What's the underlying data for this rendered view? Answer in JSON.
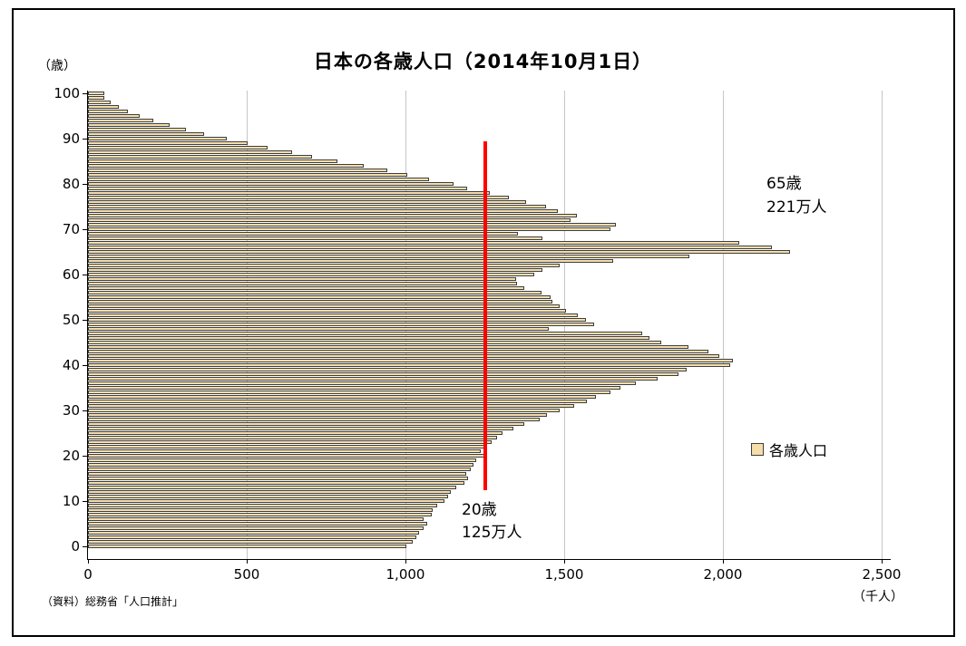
{
  "title": "日本の各歳人口（2014年10月1日）",
  "y_axis_unit": "（歳）",
  "x_axis_unit": "（千人）",
  "source": "（資料）総務省「人口推計」",
  "legend": {
    "label": "各歳人口",
    "swatch_color": "#f6deab"
  },
  "annotations": {
    "age65": {
      "line1": "65歳",
      "line2": "221万人"
    },
    "age20": {
      "line1": "20歳",
      "line2": "125万人"
    }
  },
  "chart_data": {
    "type": "bar",
    "orientation": "horizontal",
    "title": "日本の各歳人口（2014年10月1日）",
    "xlabel": "（千人）",
    "ylabel": "（歳）",
    "series_name": "各歳人口",
    "xlim": [
      0,
      2500
    ],
    "x_ticks": [
      0,
      500,
      1000,
      1500,
      2000,
      2500
    ],
    "x_tick_labels": [
      "0",
      "500",
      "1,000",
      "1,500",
      "2,000",
      "2,500"
    ],
    "y_ticks": [
      0,
      10,
      20,
      30,
      40,
      50,
      60,
      70,
      80,
      90,
      100
    ],
    "age_min": 0,
    "age_max": 100,
    "values": [
      1003,
      1022,
      1033,
      1044,
      1056,
      1068,
      1056,
      1082,
      1087,
      1099,
      1122,
      1133,
      1143,
      1161,
      1186,
      1198,
      1192,
      1207,
      1213,
      1224,
      1250,
      1237,
      1255,
      1270,
      1289,
      1307,
      1340,
      1375,
      1423,
      1447,
      1486,
      1530,
      1570,
      1599,
      1646,
      1678,
      1726,
      1795,
      1860,
      1885,
      2022,
      2030,
      1988,
      1953,
      1890,
      1805,
      1768,
      1747,
      1450,
      1595,
      1568,
      1544,
      1507,
      1486,
      1462,
      1457,
      1428,
      1375,
      1352,
      1349,
      1405,
      1431,
      1485,
      1655,
      1893,
      2210,
      2155,
      2050,
      1430,
      1355,
      1645,
      1662,
      1520,
      1540,
      1480,
      1443,
      1381,
      1326,
      1265,
      1193,
      1150,
      1075,
      1007,
      944,
      869,
      785,
      707,
      642,
      567,
      502,
      436,
      366,
      309,
      256,
      206,
      164,
      126,
      96,
      72,
      52,
      50
    ],
    "bar_color": "#f6deab",
    "bar_border_color": "#3e3e3e",
    "gridline_color": "#c6c6c6",
    "grid": true,
    "legend_position": "right",
    "marker_line": {
      "value": 1250,
      "color": "#ff0000",
      "age_from": 12.5,
      "age_to": 89,
      "meaning": "20歳の人口水準（125万人）"
    },
    "callouts": [
      {
        "age": 65,
        "value": 2210,
        "label": "65歳 221万人"
      },
      {
        "age": 20,
        "value": 1250,
        "label": "20歳 125万人"
      }
    ]
  }
}
